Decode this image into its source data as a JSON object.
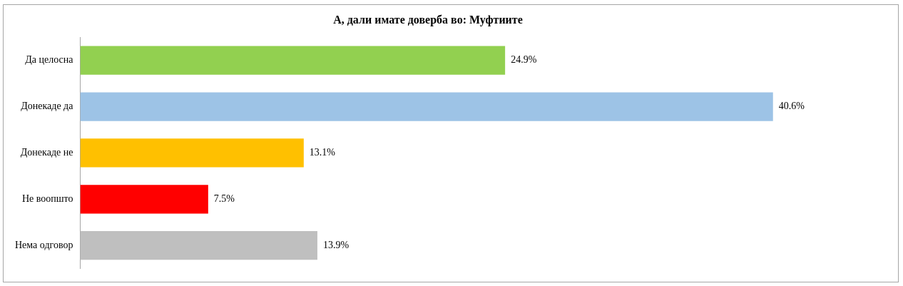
{
  "chart_data": {
    "type": "bar",
    "orientation": "horizontal",
    "title": "А, дали имате доверба во: Муфтиите",
    "categories": [
      "Да целосна",
      "Донекаде да",
      "Донекаде не",
      "Не воопшто",
      "Нема одговор"
    ],
    "values": [
      24.9,
      40.6,
      13.1,
      7.5,
      13.9
    ],
    "value_labels": [
      "24.9%",
      "40.6%",
      "13.1%",
      "7.5%",
      "13.9%"
    ],
    "colors": [
      "#92d050",
      "#9dc3e6",
      "#ffc000",
      "#ff0000",
      "#bfbfbf"
    ],
    "legend": false,
    "tick_labels": "y"
  }
}
